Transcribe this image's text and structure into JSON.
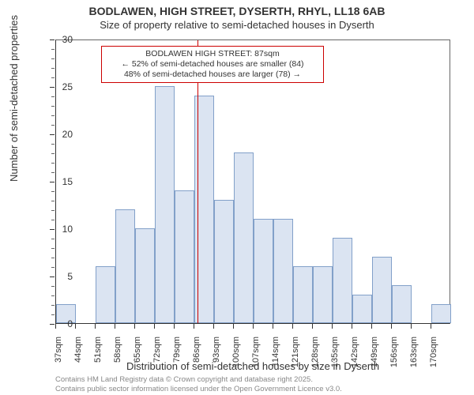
{
  "chart": {
    "type": "histogram",
    "title": "BODLAWEN, HIGH STREET, DYSERTH, RHYL, LL18 6AB",
    "subtitle": "Size of property relative to semi-detached houses in Dyserth",
    "xlabel": "Distribution of semi-detached houses by size in Dyserth",
    "ylabel": "Number of semi-detached properties",
    "background_color": "#ffffff",
    "axis_color": "#333333",
    "bar_fill": "#dbe4f2",
    "bar_border": "#82a0c9",
    "marker_color": "#cc0000",
    "annotation_border": "#cc0000",
    "ylim": [
      0,
      30
    ],
    "ytick_step": 5,
    "y_minor_step": 1,
    "x_start": 37,
    "x_step": 7,
    "x_count": 20,
    "x_unit": "sqm",
    "values": [
      2,
      0,
      6,
      12,
      10,
      25,
      14,
      24,
      13,
      18,
      11,
      11,
      6,
      6,
      9,
      3,
      7,
      4,
      0,
      2
    ],
    "marker_x": 87,
    "annotation_lines": [
      "BODLAWEN HIGH STREET: 87sqm",
      "← 52% of semi-detached houses are smaller (84)",
      "48% of semi-detached houses are larger (78) →"
    ],
    "copyright": [
      "Contains HM Land Registry data © Crown copyright and database right 2025.",
      "Contains public sector information licensed under the Open Government Licence v3.0."
    ],
    "title_fontsize": 14,
    "subtitle_fontsize": 13,
    "axis_label_fontsize": 13,
    "tick_fontsize": 12,
    "xtick_fontsize": 11,
    "annotation_fontsize": 10.5,
    "copyright_fontsize": 9.5
  }
}
